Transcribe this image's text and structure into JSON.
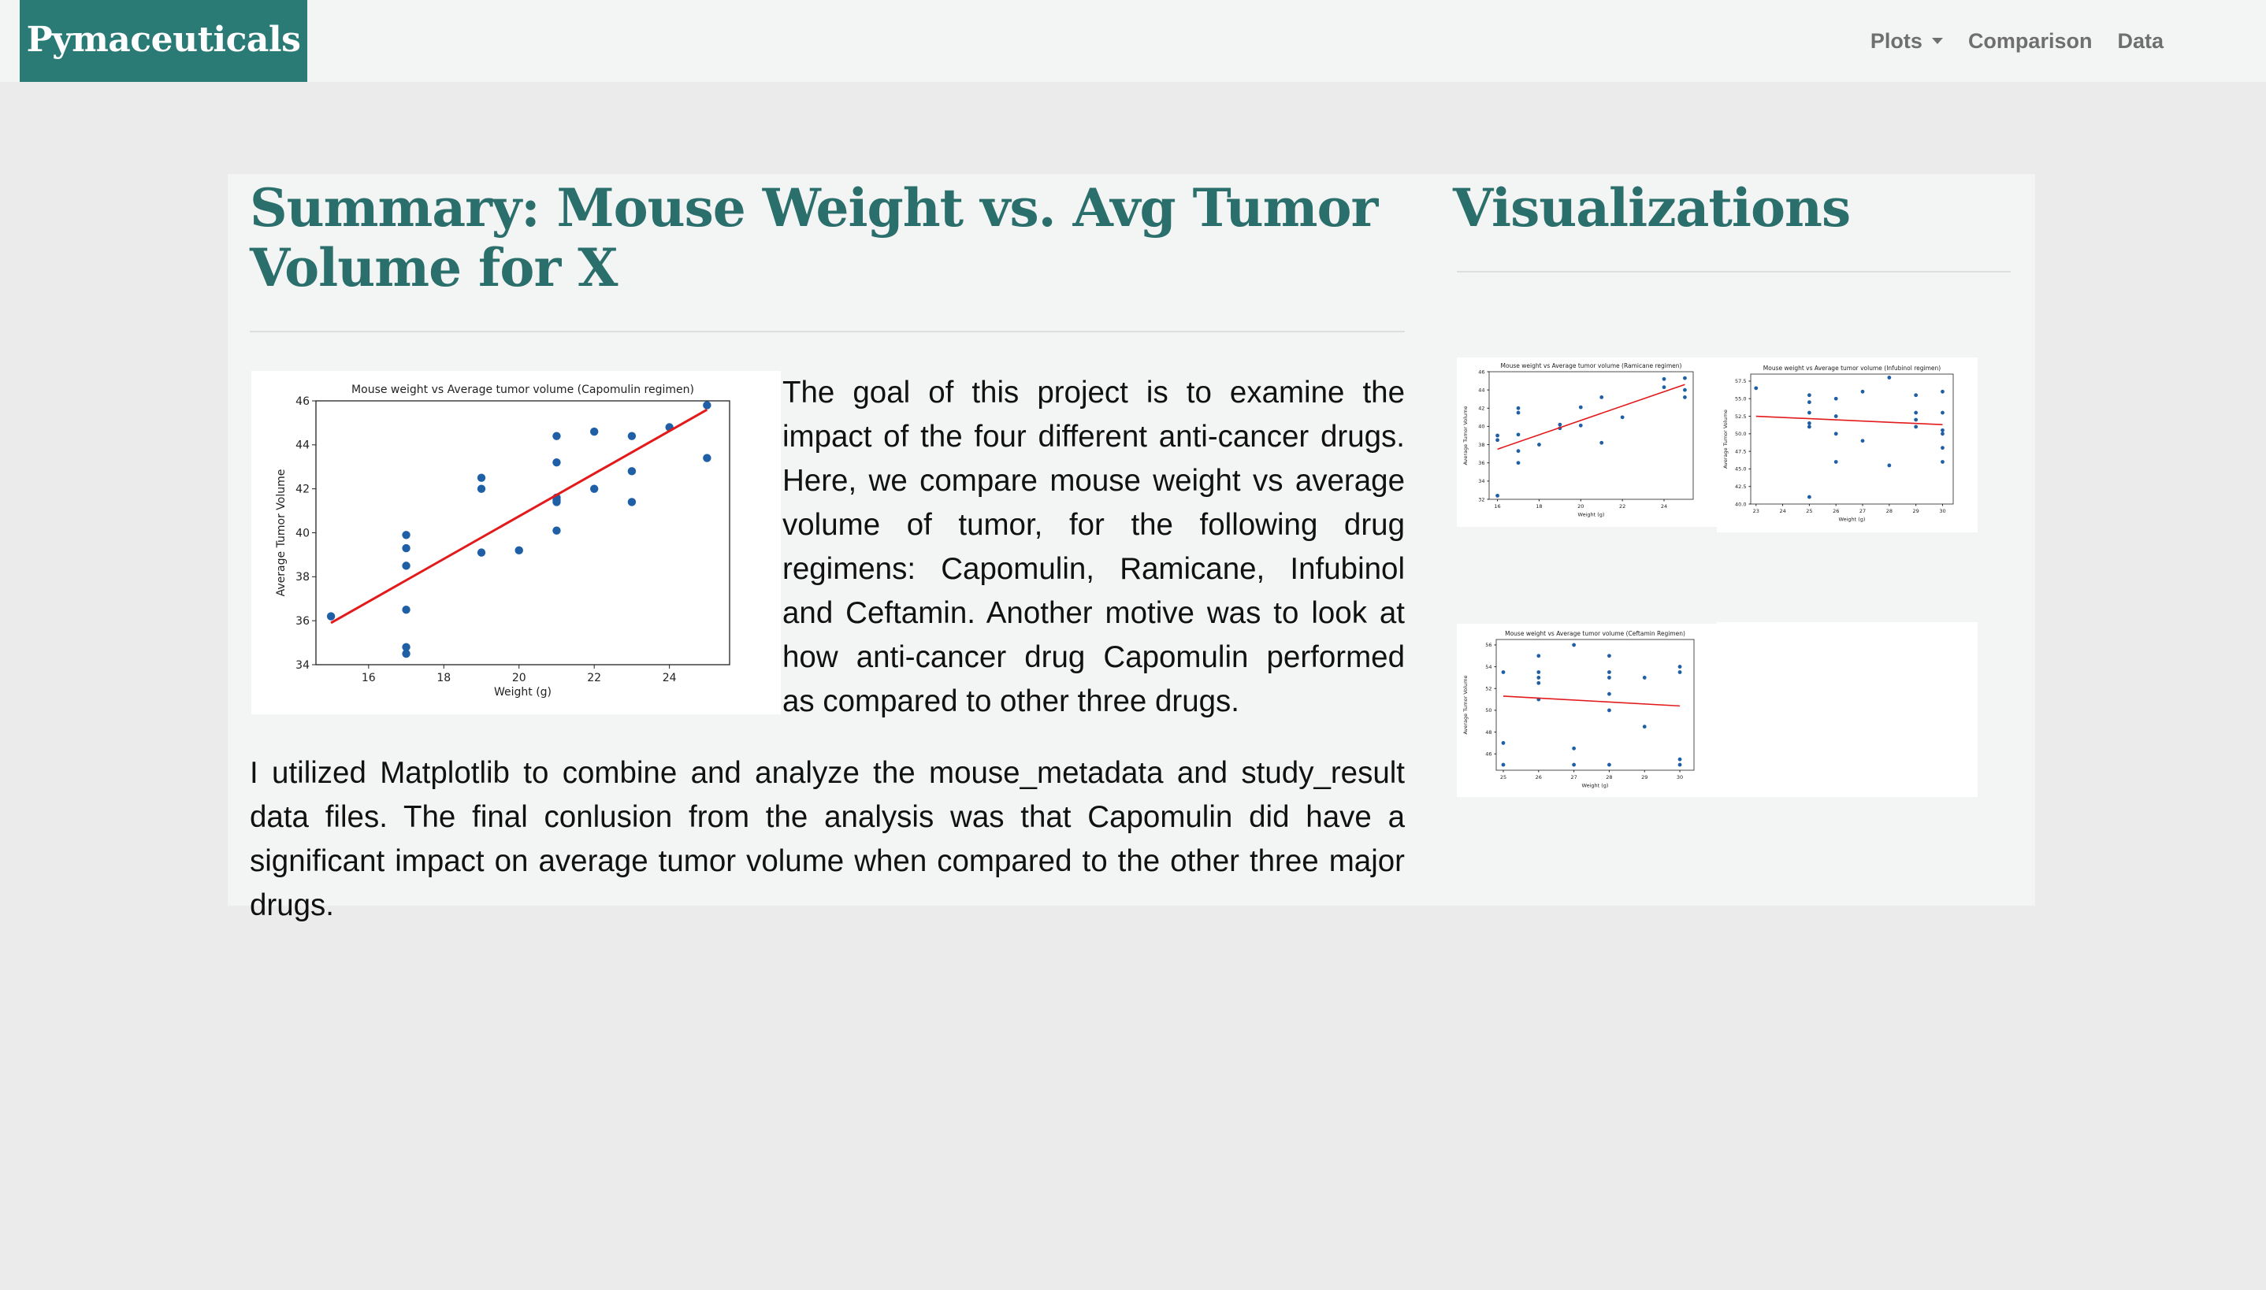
{
  "navbar": {
    "brand": "Pymaceuticals",
    "links": [
      {
        "label": "Plots",
        "dropdown": true
      },
      {
        "label": "Comparison"
      },
      {
        "label": "Data"
      }
    ]
  },
  "summary": {
    "title": "Summary: Mouse Weight vs. Avg Tumor Volume for X",
    "lead": "The goal of this project is to examine the impact of the four different anti-cancer drugs. Here, we compare mouse weight vs average volume of tumor, for the following drug regimens: Capomulin, Ramicane, Infubinol and Ceftamin. Another motive was to look at how anti-cancer drug Capomulin performed as compared to other three drugs.",
    "body": "I utilized Matplotlib to combine and analyze the mouse_metadata and study_result data files. The final conlusion from the analysis was that Capomulin did have a significant impact on average tumor volume when compared to the other three major drugs."
  },
  "visualizations": {
    "title": "Visualizations"
  },
  "colors": {
    "brand": "#2a7a76",
    "heading": "#2a6f6b",
    "points": "#1f5fa5",
    "regression": "#e31a1c"
  },
  "chart_data": [
    {
      "type": "scatter",
      "title": "Mouse weight vs Average tumor volume (Capomulin regimen)",
      "xlabel": "Weight (g)",
      "ylabel": "Average Tumor Volume",
      "xlim": [
        14.6,
        25.6
      ],
      "ylim": [
        34,
        46
      ],
      "xticks": [
        16,
        18,
        20,
        22,
        24
      ],
      "yticks": [
        34,
        36,
        38,
        40,
        42,
        44,
        46
      ],
      "x": [
        15,
        17,
        17,
        17,
        17,
        17,
        17,
        19,
        19,
        19,
        20,
        21,
        21,
        21,
        21,
        21,
        21,
        22,
        22,
        23,
        23,
        23,
        24,
        25,
        25
      ],
      "y": [
        36.2,
        34.5,
        34.8,
        36.5,
        38.5,
        39.3,
        39.9,
        39.1,
        42.0,
        42.5,
        39.2,
        40.1,
        41.4,
        41.6,
        41.5,
        43.2,
        44.4,
        42.0,
        44.6,
        41.4,
        42.8,
        44.4,
        44.8,
        43.4,
        45.8
      ],
      "regression": {
        "x": [
          15,
          25
        ],
        "y": [
          35.9,
          45.6
        ]
      },
      "grid": false
    },
    {
      "type": "scatter",
      "title": "Mouse weight vs Average tumor volume (Ramicane regimen)",
      "xlabel": "Weight (g)",
      "ylabel": "Average Tumor Volume",
      "xlim": [
        15.6,
        25.4
      ],
      "ylim": [
        32,
        46
      ],
      "xticks": [
        16,
        18,
        20,
        22,
        24
      ],
      "yticks": [
        32,
        34,
        36,
        38,
        40,
        42,
        44,
        46
      ],
      "x": [
        16,
        16,
        16,
        17,
        17,
        17,
        17,
        17,
        18,
        19,
        19,
        20,
        20,
        21,
        21,
        22,
        24,
        24,
        25,
        25,
        25
      ],
      "y": [
        32.4,
        38.5,
        39.0,
        36.0,
        37.3,
        39.1,
        41.5,
        42.0,
        38.0,
        39.8,
        40.2,
        42.1,
        40.1,
        38.2,
        43.2,
        41.0,
        44.3,
        45.2,
        45.3,
        43.2,
        44.0
      ],
      "regression": {
        "x": [
          16,
          25
        ],
        "y": [
          37.5,
          44.6
        ]
      },
      "grid": false
    },
    {
      "type": "scatter",
      "title": "Mouse weight vs Average tumor volume (Infubinol regimen)",
      "xlabel": "Weight (g)",
      "ylabel": "Average Tumor Volume",
      "xlim": [
        22.8,
        30.4
      ],
      "ylim": [
        40,
        58.5
      ],
      "xticks": [
        23,
        24,
        25,
        26,
        27,
        28,
        29,
        30
      ],
      "yticks": [
        40.0,
        42.5,
        45.0,
        47.5,
        50.0,
        52.5,
        55.0,
        57.5
      ],
      "tick_labels_y": [
        "40.0",
        "42.5",
        "45.0",
        "47.5",
        "50.0",
        "52.5",
        "55.0",
        "57.5"
      ],
      "x": [
        23,
        25,
        25,
        25,
        25,
        25,
        25,
        26,
        26,
        26,
        26,
        27,
        27,
        28,
        28,
        29,
        29,
        29,
        29,
        30,
        30,
        30,
        30,
        30,
        30
      ],
      "y": [
        56.5,
        41.0,
        51.0,
        51.5,
        53.0,
        54.5,
        55.5,
        46.0,
        50.0,
        52.5,
        55.0,
        49.0,
        56.0,
        45.5,
        58.0,
        51.0,
        52.0,
        53.0,
        55.5,
        46.0,
        48.0,
        50.0,
        50.5,
        53.0,
        56.0
      ],
      "regression": {
        "x": [
          23,
          30
        ],
        "y": [
          52.5,
          51.3
        ]
      },
      "grid": false
    },
    {
      "type": "scatter",
      "title": "Mouse weight vs Average tumor volume (Ceftamin Regimen)",
      "xlabel": "Weight (g)",
      "ylabel": "Average Tumor Volume",
      "xlim": [
        24.8,
        30.4
      ],
      "ylim": [
        44.5,
        56.5
      ],
      "xticks": [
        25,
        26,
        27,
        28,
        29,
        30
      ],
      "yticks": [
        46,
        48,
        50,
        52,
        54,
        56
      ],
      "x": [
        25,
        25,
        25,
        26,
        26,
        26,
        26,
        26,
        27,
        27,
        27,
        28,
        28,
        28,
        28,
        28,
        28,
        29,
        29,
        30,
        30,
        30,
        30
      ],
      "y": [
        45.0,
        47.0,
        53.5,
        51.0,
        52.5,
        53.0,
        53.5,
        55.0,
        45.0,
        46.5,
        56.0,
        45.0,
        50.0,
        51.5,
        53.0,
        53.5,
        55.0,
        48.5,
        53.0,
        45.0,
        45.5,
        53.5,
        54.0
      ],
      "regression": {
        "x": [
          25,
          30
        ],
        "y": [
          51.3,
          50.4
        ]
      },
      "grid": false
    }
  ]
}
